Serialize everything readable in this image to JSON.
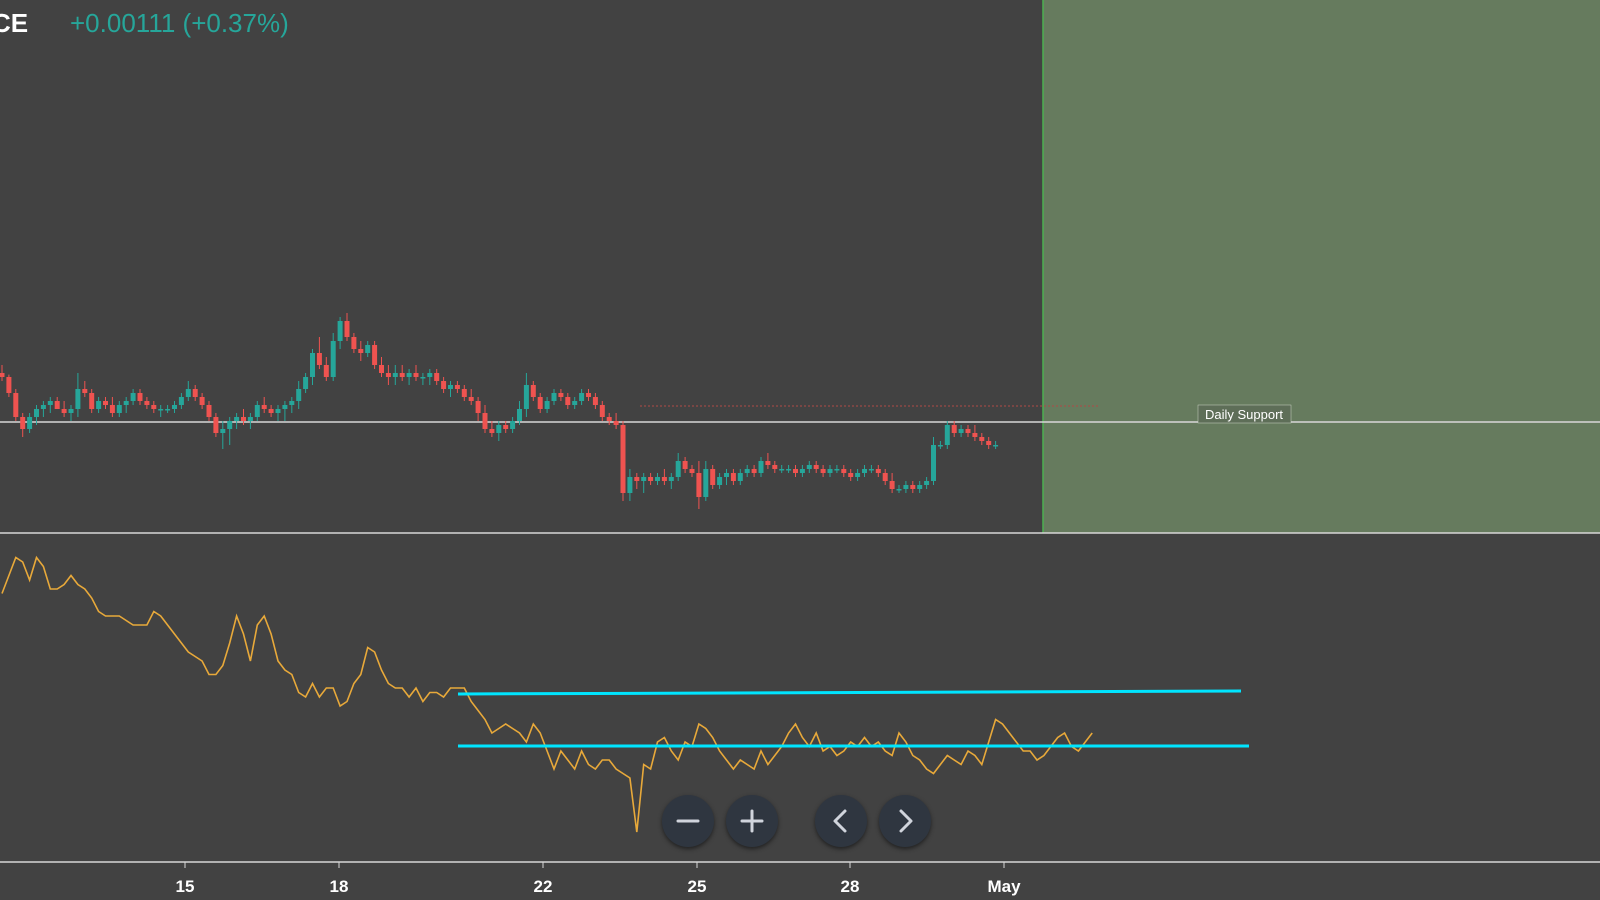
{
  "header": {
    "title_fragment": "CE",
    "change_text": "+0.00111 (+0.37%)"
  },
  "colors": {
    "background": "#424242",
    "up_candle": "#26a69a",
    "down_candle": "#ef5350",
    "highlight_zone": "#667b5e",
    "oscillator_line": "#e8a93a",
    "channel_line": "#00e5ff",
    "support_line": "#d8d8d8"
  },
  "annotations": {
    "support_label": "Daily Support"
  },
  "controls": {
    "zoom_out": "minus-icon",
    "zoom_in": "plus-icon",
    "scroll_left": "chevron-left-icon",
    "scroll_right": "chevron-right-icon"
  },
  "chart_data": [
    {
      "type": "candlestick",
      "title": "",
      "x_tick_labels": [
        "15",
        "18",
        "22",
        "25",
        "28",
        "May"
      ],
      "series": [
        {
          "ohlc": [
            [
              5,
              6,
              4,
              4.5
            ],
            [
              4.5,
              4.8,
              2,
              2.5
            ],
            [
              2.5,
              3,
              -1,
              -0.5
            ],
            [
              -0.5,
              0,
              -3,
              -2
            ],
            [
              -2,
              0,
              -2.5,
              -0.5
            ],
            [
              -0.5,
              1,
              -1.5,
              0.5
            ],
            [
              0.5,
              1.5,
              -0.5,
              1
            ],
            [
              1,
              2,
              0,
              1.5
            ],
            [
              1.5,
              2,
              0.5,
              0.5
            ],
            [
              0.5,
              1.5,
              -0.5,
              0
            ],
            [
              0,
              1,
              -1,
              0.5
            ],
            [
              0.5,
              5,
              -0.5,
              3
            ],
            [
              3,
              4,
              2,
              2.5
            ],
            [
              2.5,
              3,
              0,
              0.5
            ],
            [
              0.5,
              2,
              0,
              1.5
            ],
            [
              1.5,
              2,
              0.5,
              1
            ],
            [
              1,
              2,
              -0.5,
              0
            ],
            [
              0,
              1.5,
              -0.5,
              1
            ],
            [
              1,
              2,
              0,
              1.5
            ],
            [
              1.5,
              3,
              1,
              2.5
            ],
            [
              2.5,
              3,
              1,
              1.5
            ],
            [
              1.5,
              2,
              0.5,
              1
            ],
            [
              1,
              1.5,
              0,
              0.5
            ],
            [
              0.5,
              1,
              -0.5,
              0.5
            ],
            [
              0.5,
              1,
              0,
              0.5
            ],
            [
              0.5,
              1.5,
              0,
              1
            ],
            [
              1,
              2.5,
              0.5,
              2
            ],
            [
              2,
              4,
              1.5,
              3
            ],
            [
              3,
              3.5,
              1.5,
              2
            ],
            [
              2,
              2.5,
              0.5,
              1
            ],
            [
              1,
              1.5,
              -1,
              -0.5
            ],
            [
              -0.5,
              0,
              -3,
              -2.5
            ],
            [
              -2.5,
              -1,
              -4.5,
              -2
            ],
            [
              -2,
              -0.5,
              -4,
              -1
            ],
            [
              -1,
              0,
              -2,
              -0.5
            ],
            [
              -0.5,
              0.5,
              -1.5,
              -1
            ],
            [
              -1,
              0,
              -2,
              -0.5
            ],
            [
              -0.5,
              1.5,
              -1,
              1
            ],
            [
              1,
              2,
              0,
              0.5
            ],
            [
              0.5,
              1,
              -0.5,
              0
            ],
            [
              0,
              1,
              -1,
              0.5
            ],
            [
              0.5,
              1.5,
              -1,
              1
            ],
            [
              1,
              2,
              0,
              1.5
            ],
            [
              1.5,
              4,
              0.5,
              3
            ],
            [
              3,
              5,
              2.5,
              4.5
            ],
            [
              4.5,
              8,
              3.5,
              7.5
            ],
            [
              7.5,
              9.5,
              5.5,
              6
            ],
            [
              6,
              7,
              4,
              4.5
            ],
            [
              4.5,
              10,
              4,
              9
            ],
            [
              9,
              12,
              8,
              11.5
            ],
            [
              11.5,
              12.5,
              9,
              9.5
            ],
            [
              9.5,
              10,
              7.5,
              8
            ],
            [
              8,
              9,
              6.5,
              7.5
            ],
            [
              7.5,
              9,
              7,
              8.5
            ],
            [
              8.5,
              9,
              5.5,
              6
            ],
            [
              6,
              7,
              4.5,
              5
            ],
            [
              5,
              6,
              3.5,
              4.5
            ],
            [
              4.5,
              6,
              3.5,
              5
            ],
            [
              5,
              6,
              4,
              4.5
            ],
            [
              4.5,
              5.5,
              3.5,
              5
            ],
            [
              5,
              6,
              4,
              4.5
            ],
            [
              4.5,
              5,
              3.5,
              4.5
            ],
            [
              4.5,
              5.5,
              3.5,
              5
            ],
            [
              5,
              5.5,
              3.5,
              4
            ],
            [
              4,
              4.5,
              2.5,
              3
            ],
            [
              3,
              4,
              2,
              3.5
            ],
            [
              3.5,
              4,
              2.5,
              3
            ],
            [
              3,
              3.5,
              1.5,
              2
            ],
            [
              2,
              3,
              1,
              1.5
            ],
            [
              1.5,
              2,
              -1,
              0
            ],
            [
              0,
              1,
              -2.5,
              -2
            ],
            [
              -2,
              -1,
              -3,
              -2.5
            ],
            [
              -2.5,
              -1,
              -3.5,
              -1.5
            ],
            [
              -1.5,
              -1,
              -2.5,
              -2
            ],
            [
              -2,
              -0.5,
              -2.5,
              -1
            ],
            [
              -1,
              1.5,
              -1.5,
              0.5
            ],
            [
              0.5,
              5,
              -0.5,
              3.5
            ],
            [
              3.5,
              4,
              1.5,
              2
            ],
            [
              2,
              2.5,
              0,
              0.5
            ],
            [
              0.5,
              2,
              0,
              1.5
            ],
            [
              1.5,
              3,
              1,
              2.5
            ],
            [
              2.5,
              3,
              1.5,
              2
            ],
            [
              2,
              2.5,
              0.5,
              1
            ],
            [
              1,
              2,
              0.5,
              1.5
            ],
            [
              1.5,
              3,
              1,
              2.5
            ],
            [
              2.5,
              3,
              1.5,
              2
            ],
            [
              2,
              2.5,
              0.5,
              1
            ],
            [
              1,
              1.5,
              -1,
              -0.5
            ],
            [
              -0.5,
              0,
              -1.5,
              -1
            ],
            [
              -1,
              0,
              -2,
              -1.5
            ],
            [
              -1.5,
              -1,
              -11,
              -10
            ],
            [
              -10,
              -7,
              -11,
              -8
            ],
            [
              -8,
              -7.5,
              -9.5,
              -8.5
            ],
            [
              -8.5,
              -7.5,
              -10,
              -8
            ],
            [
              -8,
              -7.5,
              -9,
              -8.5
            ],
            [
              -8.5,
              -7.5,
              -9,
              -8
            ],
            [
              -8,
              -7,
              -9,
              -8.5
            ],
            [
              -8.5,
              -7.5,
              -9.5,
              -8
            ],
            [
              -8,
              -5,
              -8.5,
              -6
            ],
            [
              -6,
              -5.5,
              -7.5,
              -7
            ],
            [
              -7,
              -6.5,
              -8,
              -7.5
            ],
            [
              -7.5,
              -6,
              -12,
              -10.5
            ],
            [
              -10.5,
              -6,
              -11,
              -7
            ],
            [
              -7,
              -6.5,
              -9.5,
              -9
            ],
            [
              -9,
              -7.5,
              -9.5,
              -8
            ],
            [
              -8,
              -7,
              -9,
              -7.5
            ],
            [
              -7.5,
              -7,
              -9,
              -8.5
            ],
            [
              -8.5,
              -7,
              -9,
              -7.5
            ],
            [
              -7.5,
              -6.5,
              -8,
              -7
            ],
            [
              -7,
              -6.5,
              -8,
              -7.5
            ],
            [
              -7.5,
              -5.5,
              -8,
              -6
            ],
            [
              -6,
              -5,
              -7,
              -6.5
            ],
            [
              -6.5,
              -6,
              -7.5,
              -7
            ],
            [
              -7,
              -6.5,
              -7.5,
              -7
            ],
            [
              -7,
              -6.5,
              -7.5,
              -7
            ],
            [
              -7,
              -6.5,
              -8,
              -7.5
            ],
            [
              -7.5,
              -6.5,
              -8,
              -7
            ],
            [
              -7,
              -6,
              -7.5,
              -6.5
            ],
            [
              -6.5,
              -6,
              -7.5,
              -7
            ],
            [
              -7,
              -6.5,
              -8,
              -7.5
            ],
            [
              -7.5,
              -6.5,
              -8,
              -7
            ],
            [
              -7,
              -6.5,
              -7.5,
              -7
            ],
            [
              -7,
              -6.5,
              -8,
              -7.5
            ],
            [
              -7.5,
              -7,
              -8.5,
              -8
            ],
            [
              -8,
              -7,
              -8.5,
              -7.5
            ],
            [
              -7.5,
              -6.5,
              -8,
              -7
            ],
            [
              -7,
              -6.5,
              -7.5,
              -7
            ],
            [
              -7,
              -6.5,
              -8,
              -7.5
            ],
            [
              -7.5,
              -7,
              -9,
              -8.5
            ],
            [
              -8.5,
              -7.5,
              -10,
              -9.5
            ],
            [
              -9.5,
              -9,
              -10,
              -9.5
            ],
            [
              -9.5,
              -8.5,
              -10,
              -9
            ],
            [
              -9,
              -8.5,
              -10,
              -9.5
            ],
            [
              -9.5,
              -8.5,
              -10,
              -9
            ],
            [
              -9,
              -8,
              -9.5,
              -8.5
            ],
            [
              -8.5,
              -3,
              -9,
              -4
            ],
            [
              -4,
              -3.5,
              -4.5,
              -4
            ],
            [
              -4,
              -1,
              -4.5,
              -1.5
            ],
            [
              -1.5,
              -1,
              -3,
              -2.5
            ],
            [
              -2.5,
              -1.5,
              -3,
              -2
            ],
            [
              -2,
              -1.5,
              -3,
              -2.5
            ],
            [
              -2.5,
              -1.5,
              -3.5,
              -3
            ],
            [
              -3,
              -2.5,
              -4,
              -3.5
            ],
            [
              -3.5,
              -3,
              -4.5,
              -4
            ],
            [
              -4,
              -3.5,
              -4.5,
              -4
            ]
          ]
        }
      ]
    },
    {
      "type": "line",
      "x_tick_labels": [
        "15",
        "18",
        "22",
        "25",
        "28",
        "May"
      ],
      "series": [
        {
          "values": [
            62,
            66,
            70,
            69,
            65,
            70,
            68,
            63,
            63,
            64,
            66,
            64,
            63,
            61,
            58,
            57,
            57,
            57,
            56,
            55,
            55,
            55,
            58,
            57,
            55,
            53,
            51,
            49,
            48,
            47,
            44,
            44,
            46,
            51,
            57,
            53,
            47,
            55,
            57,
            53,
            47,
            45,
            44,
            40,
            39,
            42,
            39,
            41,
            41,
            37,
            38,
            42,
            44,
            50,
            49,
            45,
            42,
            41,
            41,
            39,
            41,
            38,
            40,
            40,
            39,
            41,
            41,
            41,
            38,
            36,
            34,
            31,
            32,
            33,
            32,
            31,
            29,
            33,
            31,
            27,
            23,
            27,
            25,
            23,
            27,
            24,
            23,
            25,
            25,
            23,
            22,
            21,
            9,
            24,
            23,
            29,
            30,
            27,
            25,
            29,
            28,
            33,
            32,
            30,
            27,
            25,
            23,
            25,
            24,
            23,
            27,
            24,
            26,
            28,
            31,
            33,
            30,
            28,
            31,
            27,
            28,
            26,
            27,
            29,
            28,
            30,
            28,
            29,
            27,
            26,
            31,
            29,
            26,
            25,
            23,
            22,
            24,
            26,
            25,
            24,
            27,
            26,
            24,
            29,
            34,
            33,
            31,
            29,
            27,
            27,
            25,
            26,
            28,
            30,
            31,
            28,
            27,
            29,
            31
          ]
        }
      ]
    }
  ]
}
